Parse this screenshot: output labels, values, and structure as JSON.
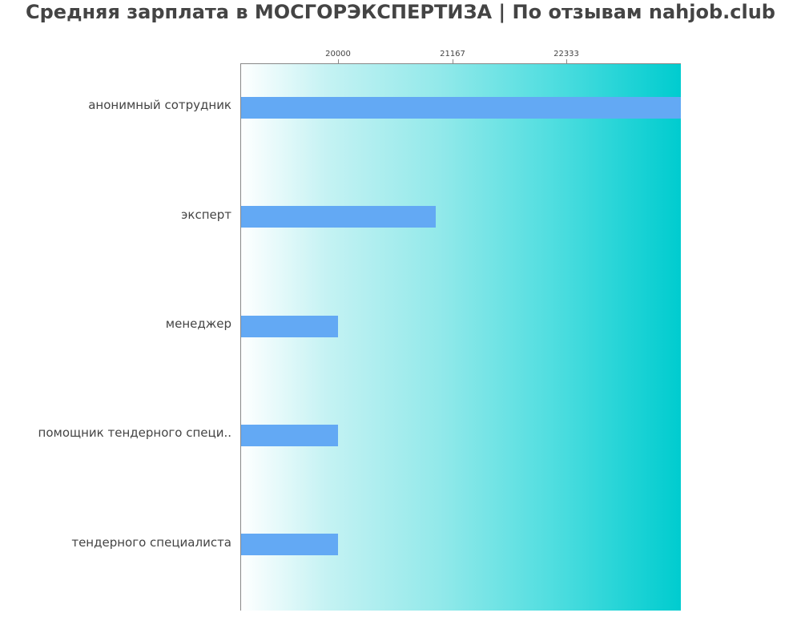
{
  "title": "Средняя зарплата в МОСГОРЭКСПЕРТИЗА | По отзывам nahjob.club",
  "colors": {
    "bar": "#63a9f4",
    "gradient_start": "#ffffff",
    "gradient_end": "#00cccf",
    "text": "#444444",
    "axis": "#888888"
  },
  "axis": {
    "ticks": [
      {
        "label": "20000",
        "value": 20000
      },
      {
        "label": "21167",
        "value": 21167
      },
      {
        "label": "22333",
        "value": 22333
      }
    ]
  },
  "chart_data": {
    "type": "bar",
    "orientation": "horizontal",
    "title": "Средняя зарплата в МОСГОРЭКСПЕРТИЗА | По отзывам nahjob.club",
    "xlabel": "",
    "ylabel": "",
    "categories": [
      "анонимный сотрудник",
      "эксперт",
      "менеджер",
      "помощник тендерного специ..",
      "тендерного специалиста"
    ],
    "values": [
      23500,
      21000,
      20000,
      20000,
      20000
    ],
    "xlim": [
      19000,
      23500
    ],
    "x_ticks": [
      20000,
      21167,
      22333
    ],
    "x_axis_position": "top",
    "grid": false,
    "legend": null
  }
}
